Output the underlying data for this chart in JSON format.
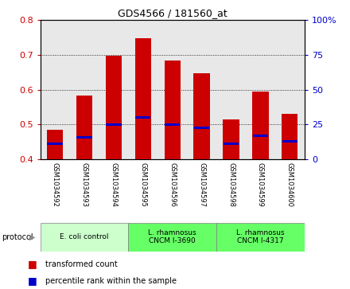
{
  "title": "GDS4566 / 181560_at",
  "samples": [
    "GSM1034592",
    "GSM1034593",
    "GSM1034594",
    "GSM1034595",
    "GSM1034596",
    "GSM1034597",
    "GSM1034598",
    "GSM1034599",
    "GSM1034600"
  ],
  "transformed_count": [
    0.484,
    0.583,
    0.698,
    0.748,
    0.683,
    0.648,
    0.515,
    0.595,
    0.53
  ],
  "percentile_rank": [
    0.445,
    0.462,
    0.5,
    0.52,
    0.498,
    0.49,
    0.443,
    0.468,
    0.45
  ],
  "ylim_left": [
    0.4,
    0.8
  ],
  "ylim_right": [
    0,
    100
  ],
  "yticks_left": [
    0.4,
    0.5,
    0.6,
    0.7,
    0.8
  ],
  "yticks_right": [
    0,
    25,
    50,
    75,
    100
  ],
  "bar_color": "#cc0000",
  "percentile_color": "#0000cc",
  "bar_width": 0.55,
  "groups": [
    {
      "label": "E. coli control",
      "samples": [
        0,
        1,
        2
      ],
      "color": "#ccffcc"
    },
    {
      "label": "L. rhamnosus\nCNCM I-3690",
      "samples": [
        3,
        4,
        5
      ],
      "color": "#66ff66"
    },
    {
      "label": "L. rhamnosus\nCNCM I-4317",
      "samples": [
        6,
        7,
        8
      ],
      "color": "#66ff66"
    }
  ],
  "protocol_label": "protocol",
  "legend_items": [
    {
      "label": "transformed count",
      "color": "#cc0000"
    },
    {
      "label": "percentile rank within the sample",
      "color": "#0000cc"
    }
  ],
  "bg_color_plot": "#e8e8e8",
  "bg_color_outside": "#ffffff",
  "table_bg": "#d8d8d8"
}
